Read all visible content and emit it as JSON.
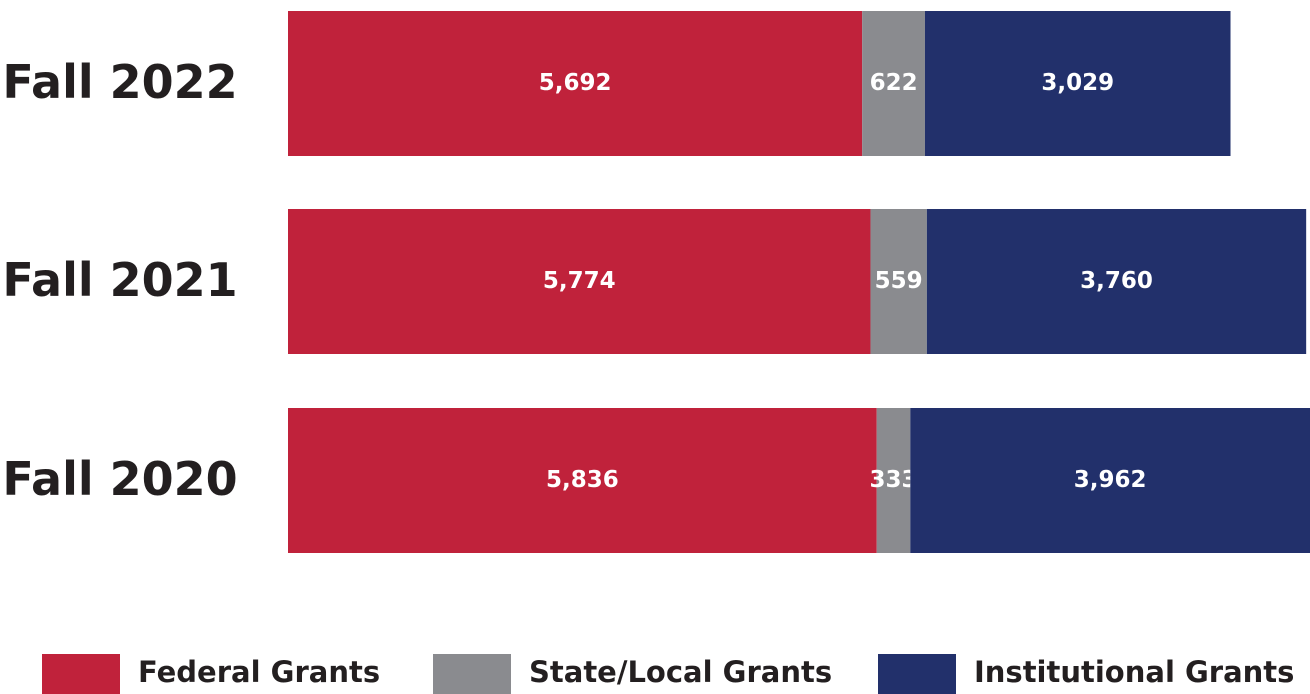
{
  "chart_data": {
    "type": "stacked-bar-horizontal",
    "categories": [
      "Fall 2022",
      "Fall 2021",
      "Fall 2020"
    ],
    "series": [
      {
        "name": "Federal Grants",
        "color": "#c0223b",
        "values": [
          5692,
          5774,
          5836
        ],
        "value_labels": [
          "5,692",
          "5,774",
          "5,836"
        ]
      },
      {
        "name": "State/Local Grants",
        "color": "#8a8b8f",
        "values": [
          622,
          559,
          333
        ],
        "value_labels": [
          "622",
          "559",
          "333"
        ]
      },
      {
        "name": "Institutional Grants",
        "color": "#22306b",
        "values": [
          3029,
          3760,
          3962
        ],
        "value_labels": [
          "3,029",
          "3,760",
          "3,962"
        ]
      }
    ],
    "legend": "bottom"
  }
}
